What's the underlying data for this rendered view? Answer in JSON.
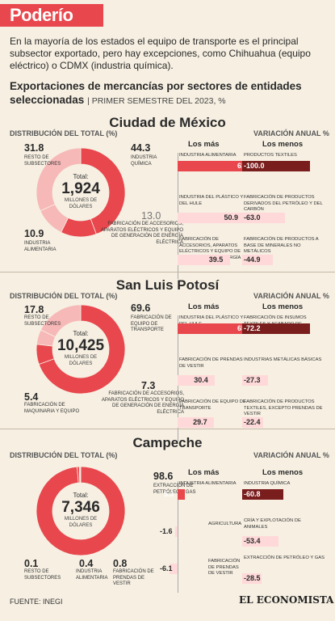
{
  "header": {
    "title": "Poderío"
  },
  "intro": "En la mayoría de los estados el equipo de transporte es el principal subsector exportado, pero hay excepciones, como Chihuahua (equipo eléctrico) o CDMX (industria química).",
  "subtitle": {
    "main": "Exportaciones de mercancías por sectores de entidades seleccionadas",
    "period": "| PRIMER SEMESTRE DEL 2023, %"
  },
  "labels": {
    "dist": "DISTRIBUCIÓN DEL TOTAL (%)",
    "var": "VARIACIÓN ANUAL %",
    "mas": "Los más",
    "menos": "Los menos",
    "total": "Total:",
    "unit": "MILLONES DE DÓLARES"
  },
  "footer": {
    "source": "FUENTE: INEGI",
    "logo": "EL ECONOMISTA"
  },
  "colors": {
    "red": "#e8474d",
    "pink": "#f7b8b8",
    "dark": "#7a1d1d",
    "light": "#ffd9d9"
  },
  "chart_data": [
    {
      "type": "pie",
      "state": "Ciudad de México",
      "total": "1,924",
      "slices": [
        {
          "name": "INDUSTRIA QUÍMICA",
          "value": 44.3,
          "label": "44.3"
        },
        {
          "name": "FABRICACIÓN DE ACCESORIOS, APARATOS ELÉCTRICOS Y EQUIPO DE GENERACIÓN DE ENERGÍA ELÉCTRICA",
          "value": 13.0,
          "label": "13.0"
        },
        {
          "name": "INDUSTRIA ALIMENTARIA",
          "value": 10.9,
          "label": "10.9"
        },
        {
          "name": "RESTO DE SUBSECTORES",
          "value": 31.8,
          "label": "31.8"
        }
      ],
      "mas": [
        {
          "name": "INDUSTRIA ALIMENTARIA",
          "value": 61.0,
          "label": "61.0"
        },
        {
          "name": "INDUSTRIA DEL PLÁSTICO Y DEL HULE",
          "value": 50.9,
          "label": "50.9"
        },
        {
          "name": "FABRICACIÓN DE ACCESORIOS, APARATOS ELÉCTRICOS Y EQUIPO DE GENERACIÓN DE ENERGÍA ELÉCTRICA",
          "value": 39.5,
          "label": "39.5"
        }
      ],
      "menos": [
        {
          "name": "PRODUCTOS TEXTILES",
          "value": -100.0,
          "label": "-100.0"
        },
        {
          "name": "FABRICACIÓN DE PRODUCTOS DERIVADOS DEL PETRÓLEO Y DEL CARBÓN",
          "value": -63.0,
          "label": "-63.0"
        },
        {
          "name": "FABRICACIÓN DE PRODUCTOS A BASE DE MINERALES NO METÁLICOS",
          "value": -44.9,
          "label": "-44.9"
        }
      ]
    },
    {
      "type": "pie",
      "state": "San Luis Potosí",
      "total": "10,425",
      "slices": [
        {
          "name": "FABRICACIÓN DE EQUIPO DE TRANSPORTE",
          "value": 69.6,
          "label": "69.6"
        },
        {
          "name": "FABRICACIÓN DE ACCESORIOS, APARATOS ELÉCTRICOS Y EQUIPO DE GENERACIÓN DE ENERGÍA ELÉCTRICA",
          "value": 7.3,
          "label": "7.3"
        },
        {
          "name": "FABRICACIÓN DE MAQUINARIA Y EQUIPO",
          "value": 5.4,
          "label": "5.4"
        },
        {
          "name": "RESTO DE SUBSECTORES",
          "value": 17.8,
          "label": "17.8"
        }
      ],
      "mas": [
        {
          "name": "INDUSTRIA DEL PLÁSTICO Y DEL HULE",
          "value": 65.8,
          "label": "65.8"
        },
        {
          "name": "FABRICACIÓN DE PRENDAS DE VESTIR",
          "value": 30.4,
          "label": "30.4"
        },
        {
          "name": "FABRICACIÓN DE EQUIPO DE TRANSPORTE",
          "value": 29.7,
          "label": "29.7"
        }
      ],
      "menos": [
        {
          "name": "FABRICACIÓN DE INSUMOS TEXTILES Y ACABADO DE TEXTILES",
          "value": -72.2,
          "label": "-72.2"
        },
        {
          "name": "INDUSTRIAS METÁLICAS BÁSICAS",
          "value": -27.3,
          "label": "-27.3"
        },
        {
          "name": "FABRICACIÓN DE PRODUCTOS TEXTILES, EXCEPTO PRENDAS DE VESTIR",
          "value": -22.4,
          "label": "-22.4"
        }
      ]
    },
    {
      "type": "pie",
      "state": "Campeche",
      "total": "7,346",
      "slices": [
        {
          "name": "EXTRACCIÓN DE PETRÓLEO Y GAS",
          "value": 98.6,
          "label": "98.6"
        },
        {
          "name": "FABRICACIÓN DE PRENDAS DE VESTIR",
          "value": 0.8,
          "label": "0.8"
        },
        {
          "name": "INDUSTRIA ALIMENTARIA",
          "value": 0.4,
          "label": "0.4"
        },
        {
          "name": "RESTO DE SUBSECTORES",
          "value": 0.1,
          "label": "0.1"
        }
      ],
      "mas": [
        {
          "name": "INDUSTRIA ALIMENTARIA",
          "value": 5.3,
          "label": "5.3"
        },
        {
          "name": "AGRICULTURA",
          "value": -1.6,
          "label": "-1.6"
        },
        {
          "name": "FABRICACIÓN DE PRENDAS DE VESTIR",
          "value": -6.1,
          "label": "-6.1"
        }
      ],
      "menos": [
        {
          "name": "INDUSTRIA QUÍMICA",
          "value": -60.8,
          "label": "-60.8"
        },
        {
          "name": "CRÍA Y EXPLOTACIÓN DE ANIMALES",
          "value": -53.4,
          "label": "-53.4"
        },
        {
          "name": "EXTRACCIÓN DE PETRÓLEO Y GAS",
          "value": -28.5,
          "label": "-28.5"
        }
      ]
    }
  ]
}
